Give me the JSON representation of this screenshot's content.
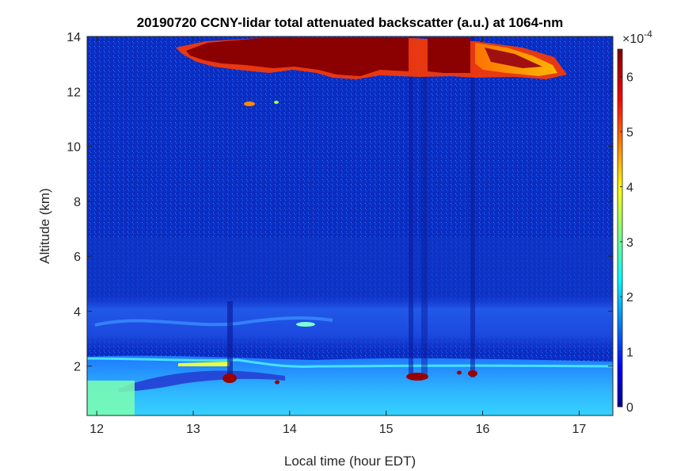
{
  "chart_data": {
    "type": "heatmap",
    "title": "20190720 CCNY-lidar total attenuated backscatter (a.u.) at 1064-nm",
    "xlabel": "Local time (hour EDT)",
    "ylabel": "Altitude (km)",
    "xlim": [
      11.9,
      17.35
    ],
    "ylim": [
      0.2,
      14
    ],
    "xticks": [
      "12",
      "13",
      "14",
      "15",
      "16",
      "17"
    ],
    "yticks": [
      "2",
      "4",
      "6",
      "8",
      "10",
      "12",
      "14"
    ],
    "colorbar": {
      "multiplier": "×10",
      "exponent": "-4",
      "range": [
        0,
        6.5
      ],
      "ticks": [
        "0",
        "1",
        "2",
        "3",
        "4",
        "5",
        "6"
      ],
      "colormap": "jet"
    },
    "features": [
      {
        "name": "cirrus cloud",
        "time_range": [
          12.9,
          16.7
        ],
        "altitude_range": [
          12.6,
          14
        ],
        "value": 6.5
      },
      {
        "name": "boundary layer aerosol",
        "time_range": [
          11.9,
          17.35
        ],
        "altitude_range": [
          0.2,
          2.3
        ],
        "value": 2.5
      },
      {
        "name": "elevated aerosol layer",
        "time_range": [
          11.9,
          17.35
        ],
        "altitude_range": [
          3.0,
          4.4
        ],
        "value": 1.4
      },
      {
        "name": "low cloud",
        "time": 13.37,
        "altitude": 1.65,
        "value": 6.5
      },
      {
        "name": "low cloud",
        "time": 15.3,
        "altitude": 1.65,
        "value": 6.5
      },
      {
        "name": "low cloud",
        "time": 15.88,
        "altitude": 1.75,
        "value": 6.5
      }
    ]
  }
}
